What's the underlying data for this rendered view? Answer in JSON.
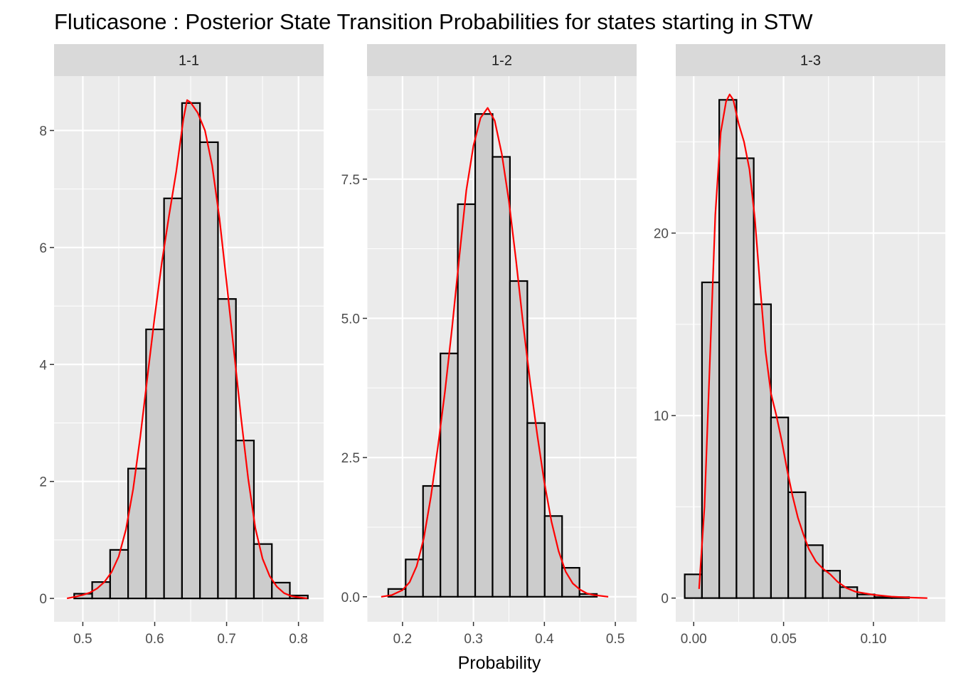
{
  "chart_data": {
    "type": "bar",
    "title": "Fluticasone : Posterior State Transition Probabilities for states starting in STW",
    "xlabel": "Probability",
    "ylabel": "",
    "grid": true,
    "colors": {
      "bar_fill": "#cccccc",
      "bar_stroke": "#000000",
      "density": "#ff0000",
      "panel_bg": "#ebebeb",
      "strip_bg": "#d9d9d9",
      "grid": "#ffffff"
    },
    "panels": [
      {
        "label": "1-1",
        "xlim": [
          0.46,
          0.835
        ],
        "ylim": [
          -0.4,
          8.93
        ],
        "x_ticks": [
          0.5,
          0.6,
          0.7,
          0.8
        ],
        "x_tick_labels": [
          "0.5",
          "0.6",
          "0.7",
          "0.8"
        ],
        "y_ticks": [
          0,
          2,
          4,
          6,
          8
        ],
        "y_tick_labels": [
          "0",
          "2",
          "4",
          "6",
          "8"
        ],
        "bin_width": 0.025,
        "bins": [
          {
            "x": 0.4755,
            "count": 0.0
          },
          {
            "x": 0.5005,
            "count": 0.08
          },
          {
            "x": 0.5255,
            "count": 0.28
          },
          {
            "x": 0.5505,
            "count": 0.83
          },
          {
            "x": 0.5755,
            "count": 2.22
          },
          {
            "x": 0.6005,
            "count": 4.6
          },
          {
            "x": 0.6255,
            "count": 6.84
          },
          {
            "x": 0.6505,
            "count": 8.47
          },
          {
            "x": 0.6755,
            "count": 7.8
          },
          {
            "x": 0.7005,
            "count": 5.12
          },
          {
            "x": 0.7255,
            "count": 2.7
          },
          {
            "x": 0.7505,
            "count": 0.93
          },
          {
            "x": 0.7755,
            "count": 0.27
          },
          {
            "x": 0.8005,
            "count": 0.05
          },
          {
            "x": 0.8255,
            "count": 0.0
          }
        ],
        "density": [
          [
            0.478,
            0.0
          ],
          [
            0.49,
            0.03
          ],
          [
            0.5,
            0.06
          ],
          [
            0.51,
            0.1
          ],
          [
            0.52,
            0.17
          ],
          [
            0.53,
            0.28
          ],
          [
            0.54,
            0.45
          ],
          [
            0.55,
            0.72
          ],
          [
            0.56,
            1.18
          ],
          [
            0.57,
            1.87
          ],
          [
            0.58,
            2.77
          ],
          [
            0.59,
            3.8
          ],
          [
            0.6,
            4.82
          ],
          [
            0.61,
            5.75
          ],
          [
            0.62,
            6.55
          ],
          [
            0.63,
            7.3
          ],
          [
            0.64,
            8.2
          ],
          [
            0.645,
            8.52
          ],
          [
            0.65,
            8.48
          ],
          [
            0.66,
            8.3
          ],
          [
            0.67,
            8.0
          ],
          [
            0.68,
            7.4
          ],
          [
            0.69,
            6.5
          ],
          [
            0.7,
            5.4
          ],
          [
            0.71,
            4.25
          ],
          [
            0.72,
            3.1
          ],
          [
            0.73,
            2.05
          ],
          [
            0.74,
            1.2
          ],
          [
            0.75,
            0.68
          ],
          [
            0.76,
            0.38
          ],
          [
            0.77,
            0.2
          ],
          [
            0.78,
            0.09
          ],
          [
            0.79,
            0.04
          ],
          [
            0.8,
            0.02
          ],
          [
            0.812,
            0.0
          ]
        ]
      },
      {
        "label": "1-2",
        "xlim": [
          0.15,
          0.53
        ],
        "ylim": [
          -0.45,
          9.35
        ],
        "x_ticks": [
          0.2,
          0.3,
          0.4,
          0.5
        ],
        "x_tick_labels": [
          "0.2",
          "0.3",
          "0.4",
          "0.5"
        ],
        "y_ticks": [
          0.0,
          2.5,
          5.0,
          7.5
        ],
        "y_tick_labels": [
          "0.0",
          "2.5",
          "5.0",
          "7.5"
        ],
        "bin_width": 0.0245,
        "bins": [
          {
            "x": 0.1677,
            "count": 0.0
          },
          {
            "x": 0.1922,
            "count": 0.14
          },
          {
            "x": 0.2167,
            "count": 0.67
          },
          {
            "x": 0.2412,
            "count": 1.99
          },
          {
            "x": 0.2657,
            "count": 4.37
          },
          {
            "x": 0.2902,
            "count": 7.05
          },
          {
            "x": 0.3147,
            "count": 8.67
          },
          {
            "x": 0.3392,
            "count": 7.9
          },
          {
            "x": 0.3637,
            "count": 5.67
          },
          {
            "x": 0.3882,
            "count": 3.12
          },
          {
            "x": 0.4127,
            "count": 1.45
          },
          {
            "x": 0.4372,
            "count": 0.52
          },
          {
            "x": 0.4617,
            "count": 0.05
          },
          {
            "x": 0.4862,
            "count": 0.0
          },
          {
            "x": 0.5107,
            "count": 0.0
          }
        ],
        "density": [
          [
            0.17,
            0.0
          ],
          [
            0.185,
            0.03
          ],
          [
            0.2,
            0.12
          ],
          [
            0.21,
            0.26
          ],
          [
            0.22,
            0.55
          ],
          [
            0.23,
            1.05
          ],
          [
            0.24,
            1.8
          ],
          [
            0.25,
            2.7
          ],
          [
            0.26,
            3.7
          ],
          [
            0.27,
            4.85
          ],
          [
            0.28,
            6.1
          ],
          [
            0.29,
            7.3
          ],
          [
            0.3,
            8.1
          ],
          [
            0.31,
            8.6
          ],
          [
            0.32,
            8.78
          ],
          [
            0.33,
            8.55
          ],
          [
            0.34,
            7.95
          ],
          [
            0.35,
            7.1
          ],
          [
            0.36,
            6.05
          ],
          [
            0.37,
            4.9
          ],
          [
            0.38,
            3.85
          ],
          [
            0.39,
            2.9
          ],
          [
            0.4,
            2.05
          ],
          [
            0.41,
            1.35
          ],
          [
            0.42,
            0.82
          ],
          [
            0.43,
            0.45
          ],
          [
            0.44,
            0.24
          ],
          [
            0.45,
            0.13
          ],
          [
            0.46,
            0.06
          ],
          [
            0.47,
            0.03
          ],
          [
            0.49,
            0.0
          ]
        ]
      },
      {
        "label": "1-3",
        "xlim": [
          -0.01,
          0.14
        ],
        "ylim": [
          -1.3,
          28.6
        ],
        "x_ticks": [
          0.0,
          0.05,
          0.1
        ],
        "x_tick_labels": [
          "0.00",
          "0.05",
          "0.10"
        ],
        "y_ticks": [
          0,
          10,
          20
        ],
        "y_tick_labels": [
          "0",
          "10",
          "20"
        ],
        "bin_width": 0.0096,
        "bins": [
          {
            "x": -0.0002,
            "count": 1.3
          },
          {
            "x": 0.0094,
            "count": 17.3
          },
          {
            "x": 0.019,
            "count": 27.3
          },
          {
            "x": 0.0286,
            "count": 24.1
          },
          {
            "x": 0.0382,
            "count": 16.1
          },
          {
            "x": 0.0478,
            "count": 9.9
          },
          {
            "x": 0.0574,
            "count": 5.8
          },
          {
            "x": 0.067,
            "count": 2.9
          },
          {
            "x": 0.0766,
            "count": 1.5
          },
          {
            "x": 0.0862,
            "count": 0.6
          },
          {
            "x": 0.0958,
            "count": 0.2
          },
          {
            "x": 0.1054,
            "count": 0.05
          },
          {
            "x": 0.115,
            "count": 0.05
          },
          {
            "x": 0.1246,
            "count": 0.0
          },
          {
            "x": 0.1342,
            "count": 0.0
          }
        ],
        "density": [
          [
            0.003,
            0.5
          ],
          [
            0.006,
            5.0
          ],
          [
            0.009,
            13.0
          ],
          [
            0.012,
            21.0
          ],
          [
            0.015,
            25.5
          ],
          [
            0.018,
            27.2
          ],
          [
            0.02,
            27.6
          ],
          [
            0.022,
            27.3
          ],
          [
            0.025,
            26.0
          ],
          [
            0.028,
            25.0
          ],
          [
            0.031,
            23.5
          ],
          [
            0.034,
            20.8
          ],
          [
            0.037,
            17.0
          ],
          [
            0.04,
            13.5
          ],
          [
            0.043,
            11.2
          ],
          [
            0.046,
            10.0
          ],
          [
            0.049,
            8.6
          ],
          [
            0.052,
            7.0
          ],
          [
            0.055,
            5.6
          ],
          [
            0.058,
            4.4
          ],
          [
            0.061,
            3.5
          ],
          [
            0.064,
            2.7
          ],
          [
            0.068,
            2.0
          ],
          [
            0.072,
            1.6
          ],
          [
            0.076,
            1.3
          ],
          [
            0.08,
            0.9
          ],
          [
            0.085,
            0.55
          ],
          [
            0.09,
            0.35
          ],
          [
            0.1,
            0.18
          ],
          [
            0.11,
            0.08
          ],
          [
            0.12,
            0.03
          ],
          [
            0.13,
            0.0
          ]
        ]
      }
    ]
  }
}
